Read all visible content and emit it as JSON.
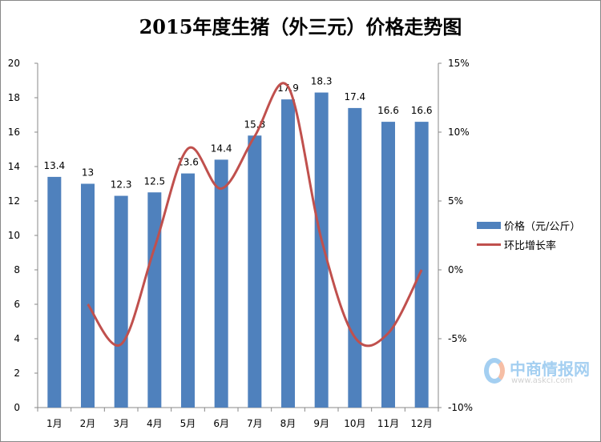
{
  "chart_data": {
    "type": "bar+line",
    "title": "2015年度生猪（外三元）价格走势图",
    "categories": [
      "1月",
      "2月",
      "3月",
      "4月",
      "5月",
      "6月",
      "7月",
      "8月",
      "9月",
      "10月",
      "11月",
      "12月"
    ],
    "series": [
      {
        "name": "价格（元/公斤）",
        "type": "bar",
        "axis": "left",
        "color": "#4f81bd",
        "values": [
          13.4,
          13,
          12.3,
          12.5,
          13.6,
          14.4,
          15.8,
          17.9,
          18.3,
          17.4,
          16.6,
          16.6
        ],
        "labels": [
          "13.4",
          "13",
          "12.3",
          "12.5",
          "13.6",
          "14.4",
          "15.8",
          "17.9",
          "18.3",
          "17.4",
          "16.6",
          "16.6"
        ]
      },
      {
        "name": "环比增长率",
        "type": "line",
        "axis": "right",
        "color": "#c0504d",
        "smooth": true,
        "values": [
          null,
          -2.5,
          -5.4,
          1.6,
          8.8,
          5.9,
          9.7,
          13.3,
          2.2,
          -4.9,
          -4.6,
          0.0
        ]
      }
    ],
    "left_axis": {
      "min": 0,
      "max": 20,
      "step": 2,
      "ticks": [
        "0",
        "2",
        "4",
        "6",
        "8",
        "10",
        "12",
        "14",
        "16",
        "18",
        "20"
      ]
    },
    "right_axis": {
      "min": -10,
      "max": 15,
      "step": 5,
      "ticks": [
        "-10%",
        "-5%",
        "0%",
        "5%",
        "10%",
        "15%"
      ]
    },
    "grid": false,
    "legend": "right"
  },
  "watermark": {
    "name": "中商情报网",
    "url": "www.askci.com"
  }
}
